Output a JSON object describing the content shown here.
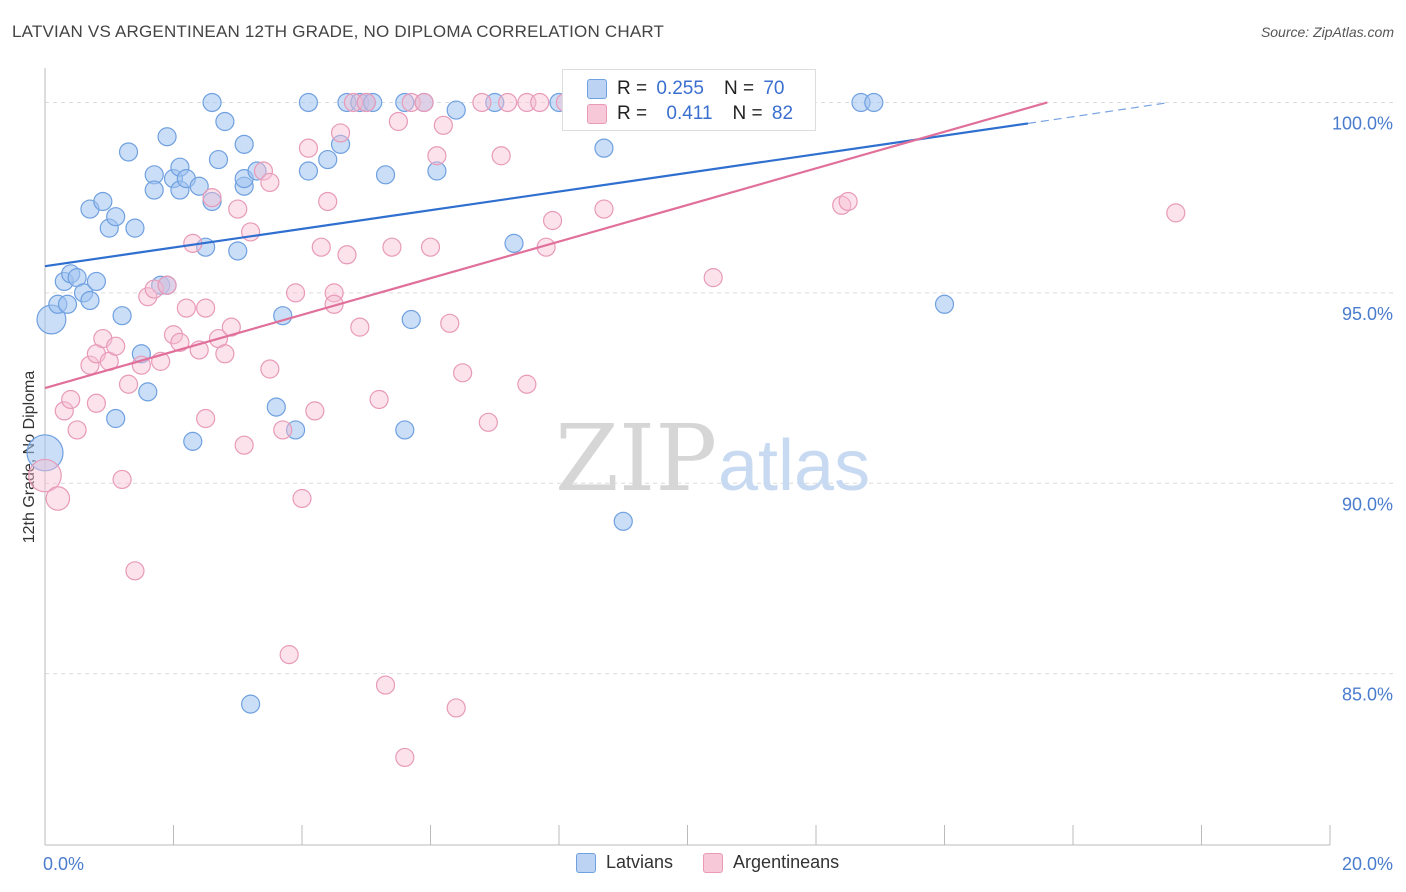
{
  "header": {
    "title": "LATVIAN VS ARGENTINEAN 12TH GRADE, NO DIPLOMA CORRELATION CHART",
    "source": "Source: ZipAtlas.com"
  },
  "watermark": {
    "zip": "ZIP",
    "atlas": "atlas"
  },
  "stats": [
    {
      "r_label": "R =",
      "r_value": "0.255",
      "n_label": "N =",
      "n_value": "70",
      "color": "#6fa0e0",
      "fill": "#bcd3f3"
    },
    {
      "r_label": "R =",
      "r_value": "0.411",
      "n_label": "N =",
      "n_value": "82",
      "color": "#e89ab8",
      "fill": "#f7c9d8"
    }
  ],
  "legend": [
    {
      "label": "Latvians",
      "color": "#6fa0e0",
      "fill": "#bcd3f3"
    },
    {
      "label": "Argentineans",
      "color": "#e89ab8",
      "fill": "#f7c9d8"
    }
  ],
  "chart_data": {
    "type": "scatter",
    "title": "LATVIAN VS ARGENTINEAN 12TH GRADE, NO DIPLOMA CORRELATION CHART",
    "xlabel": "",
    "ylabel": "12th Grade, No Diploma",
    "xlim": [
      0,
      20
    ],
    "ylim": [
      80.5,
      100.8
    ],
    "x_tick_labels": [
      "0.0%",
      "20.0%"
    ],
    "y_ticks": [
      85,
      90,
      95,
      100
    ],
    "y_tick_labels": [
      "85.0%",
      "90.0%",
      "95.0%",
      "100.0%"
    ],
    "grid": true,
    "legend_position": "bottom",
    "series": [
      {
        "name": "Latvians",
        "color": "#4a82d8",
        "fill": "#bcd3f3",
        "trend": {
          "x0": 0,
          "y0": 95.7,
          "x1": 15.3,
          "y1": 99.45,
          "dash_to_x": 17.5,
          "dash_to_y": 100.0
        },
        "points": [
          [
            0.1,
            94.3,
            1.6
          ],
          [
            0.0,
            90.8,
            2.0
          ],
          [
            0.2,
            94.7,
            1
          ],
          [
            0.3,
            95.3,
            1
          ],
          [
            0.35,
            94.7,
            1
          ],
          [
            0.4,
            95.5,
            1
          ],
          [
            0.5,
            95.4,
            1
          ],
          [
            0.6,
            95.0,
            1
          ],
          [
            0.7,
            94.8,
            1
          ],
          [
            0.8,
            95.3,
            1
          ],
          [
            0.7,
            97.2,
            1
          ],
          [
            0.9,
            97.4,
            1
          ],
          [
            1.0,
            96.7,
            1
          ],
          [
            1.1,
            97.0,
            1
          ],
          [
            1.4,
            96.7,
            1
          ],
          [
            1.3,
            98.7,
            1
          ],
          [
            1.2,
            94.4,
            1
          ],
          [
            1.1,
            91.7,
            1
          ],
          [
            1.5,
            93.4,
            1
          ],
          [
            1.6,
            92.4,
            1
          ],
          [
            1.7,
            98.1,
            1
          ],
          [
            1.7,
            97.7,
            1
          ],
          [
            1.8,
            95.2,
            1
          ],
          [
            1.9,
            95.2,
            1
          ],
          [
            1.9,
            99.1,
            1
          ],
          [
            2.0,
            98.0,
            1
          ],
          [
            2.1,
            97.7,
            1
          ],
          [
            2.1,
            98.3,
            1
          ],
          [
            2.2,
            98.0,
            1
          ],
          [
            2.3,
            91.1,
            1
          ],
          [
            2.4,
            97.8,
            1
          ],
          [
            2.5,
            96.2,
            1
          ],
          [
            2.6,
            97.4,
            1
          ],
          [
            2.6,
            100.0,
            1
          ],
          [
            2.7,
            98.5,
            1
          ],
          [
            2.8,
            99.5,
            1
          ],
          [
            3.0,
            96.1,
            1
          ],
          [
            3.1,
            97.8,
            1
          ],
          [
            3.1,
            98.9,
            1
          ],
          [
            3.1,
            98.0,
            1
          ],
          [
            3.2,
            84.2,
            1
          ],
          [
            3.3,
            98.2,
            1
          ],
          [
            3.6,
            92.0,
            1
          ],
          [
            3.7,
            94.4,
            1
          ],
          [
            3.9,
            91.4,
            1
          ],
          [
            4.1,
            100.0,
            1
          ],
          [
            4.1,
            98.2,
            1
          ],
          [
            4.4,
            98.5,
            1
          ],
          [
            4.6,
            98.9,
            1
          ],
          [
            4.7,
            100.0,
            1
          ],
          [
            4.9,
            100.0,
            1
          ],
          [
            5.0,
            100.0,
            1
          ],
          [
            5.1,
            100.0,
            1
          ],
          [
            5.3,
            98.1,
            1
          ],
          [
            5.6,
            100.0,
            1
          ],
          [
            5.6,
            91.4,
            1
          ],
          [
            5.7,
            94.3,
            1
          ],
          [
            5.9,
            100.0,
            1
          ],
          [
            6.1,
            98.2,
            1
          ],
          [
            6.4,
            99.8,
            1
          ],
          [
            7.0,
            100.0,
            1
          ],
          [
            7.3,
            96.3,
            1
          ],
          [
            8.0,
            100.0,
            1
          ],
          [
            8.7,
            98.8,
            1
          ],
          [
            9.0,
            89.0,
            1
          ],
          [
            9.1,
            100.0,
            1
          ],
          [
            10.4,
            100.0,
            1
          ],
          [
            12.7,
            100.0,
            1
          ],
          [
            12.9,
            100.0,
            1
          ],
          [
            14.0,
            94.7,
            1
          ]
        ]
      },
      {
        "name": "Argentineans",
        "color": "#e0709a",
        "fill": "#f7c9d8",
        "trend": {
          "x0": 0,
          "y0": 92.5,
          "x1": 15.6,
          "y1": 100.0
        },
        "points": [
          [
            0.0,
            90.2,
            1.8
          ],
          [
            0.2,
            89.6,
            1.3
          ],
          [
            0.3,
            91.9,
            1
          ],
          [
            0.4,
            92.2,
            1
          ],
          [
            0.5,
            91.4,
            1
          ],
          [
            0.7,
            93.1,
            1
          ],
          [
            0.8,
            93.4,
            1
          ],
          [
            0.8,
            92.1,
            1
          ],
          [
            0.9,
            93.8,
            1
          ],
          [
            1.0,
            93.2,
            1
          ],
          [
            1.1,
            93.6,
            1
          ],
          [
            1.2,
            90.1,
            1
          ],
          [
            1.3,
            92.6,
            1
          ],
          [
            1.4,
            87.7,
            1
          ],
          [
            1.5,
            93.1,
            1
          ],
          [
            1.6,
            94.9,
            1
          ],
          [
            1.7,
            95.1,
            1
          ],
          [
            1.8,
            93.2,
            1
          ],
          [
            1.9,
            95.2,
            1
          ],
          [
            2.0,
            93.9,
            1
          ],
          [
            2.1,
            93.7,
            1
          ],
          [
            2.2,
            94.6,
            1
          ],
          [
            2.3,
            96.3,
            1
          ],
          [
            2.4,
            93.5,
            1
          ],
          [
            2.5,
            94.6,
            1
          ],
          [
            2.5,
            91.7,
            1
          ],
          [
            2.6,
            97.5,
            1
          ],
          [
            2.7,
            93.8,
            1
          ],
          [
            2.8,
            93.4,
            1
          ],
          [
            2.9,
            94.1,
            1
          ],
          [
            3.0,
            97.2,
            1
          ],
          [
            3.1,
            91.0,
            1
          ],
          [
            3.2,
            96.6,
            1
          ],
          [
            3.4,
            98.2,
            1
          ],
          [
            3.5,
            97.9,
            1
          ],
          [
            3.5,
            93.0,
            1
          ],
          [
            3.7,
            91.4,
            1
          ],
          [
            3.8,
            85.5,
            1
          ],
          [
            3.9,
            95.0,
            1
          ],
          [
            4.0,
            89.6,
            1
          ],
          [
            4.1,
            98.8,
            1
          ],
          [
            4.2,
            91.9,
            1
          ],
          [
            4.3,
            96.2,
            1
          ],
          [
            4.4,
            97.4,
            1
          ],
          [
            4.5,
            95.0,
            1
          ],
          [
            4.5,
            94.7,
            1
          ],
          [
            4.6,
            99.2,
            1
          ],
          [
            4.7,
            96.0,
            1
          ],
          [
            4.8,
            100.0,
            1
          ],
          [
            4.9,
            94.1,
            1
          ],
          [
            5.0,
            100.0,
            1
          ],
          [
            5.2,
            92.2,
            1
          ],
          [
            5.3,
            84.7,
            1
          ],
          [
            5.4,
            96.2,
            1
          ],
          [
            5.5,
            99.5,
            1
          ],
          [
            5.6,
            82.8,
            1
          ],
          [
            5.7,
            100.0,
            1
          ],
          [
            5.9,
            100.0,
            1
          ],
          [
            6.0,
            96.2,
            1
          ],
          [
            6.1,
            98.6,
            1
          ],
          [
            6.2,
            99.4,
            1
          ],
          [
            6.3,
            94.2,
            1
          ],
          [
            6.4,
            84.1,
            1
          ],
          [
            6.5,
            92.9,
            1
          ],
          [
            6.8,
            100.0,
            1
          ],
          [
            6.9,
            91.6,
            1
          ],
          [
            7.1,
            98.6,
            1
          ],
          [
            7.2,
            100.0,
            1
          ],
          [
            7.5,
            92.6,
            1
          ],
          [
            7.5,
            100.0,
            1
          ],
          [
            7.7,
            100.0,
            1
          ],
          [
            7.8,
            96.2,
            1
          ],
          [
            7.9,
            96.9,
            1
          ],
          [
            8.1,
            100.0,
            1
          ],
          [
            8.3,
            100.0,
            1
          ],
          [
            8.7,
            97.2,
            1
          ],
          [
            9.3,
            100.0,
            1
          ],
          [
            9.7,
            100.0,
            1
          ],
          [
            10.4,
            95.4,
            1
          ],
          [
            12.4,
            97.3,
            1
          ],
          [
            12.5,
            97.4,
            1
          ],
          [
            17.6,
            97.1,
            1
          ]
        ]
      }
    ]
  }
}
